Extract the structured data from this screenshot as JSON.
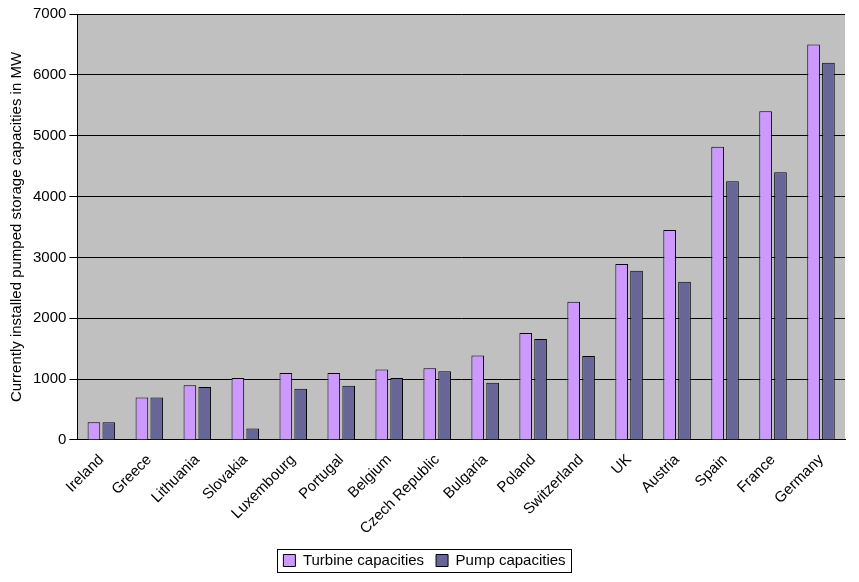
{
  "chart_data": {
    "type": "bar",
    "y_label": "Currently installed pumped storage capacities in MW",
    "categories": [
      "Ireland",
      "Greece",
      "Lithuania",
      "Slovakia",
      "Luxembourg",
      "Portugal",
      "Belgium",
      "Czech Republic",
      "Bulgaria",
      "Poland",
      "Switzerland",
      "UK",
      "Austria",
      "Spain",
      "France",
      "Germany"
    ],
    "series": [
      {
        "name": "Turbine capacities",
        "color": "#cc99ff",
        "values": [
          290,
          700,
          900,
          1020,
          1100,
          1100,
          1160,
          1180,
          1390,
          1760,
          2270,
          2890,
          3450,
          4820,
          5400,
          6500
        ]
      },
      {
        "name": "Pump capacities",
        "color": "#666699",
        "values": [
          290,
          700,
          870,
          190,
          840,
          890,
          1020,
          1130,
          940,
          1660,
          1380,
          2780,
          2600,
          4250,
          4400,
          6200
        ]
      }
    ],
    "ylim": [
      0,
      7000
    ],
    "yticks": [
      0,
      1000,
      2000,
      3000,
      4000,
      5000,
      6000,
      7000
    ],
    "grid": true,
    "legend": "bottom"
  }
}
